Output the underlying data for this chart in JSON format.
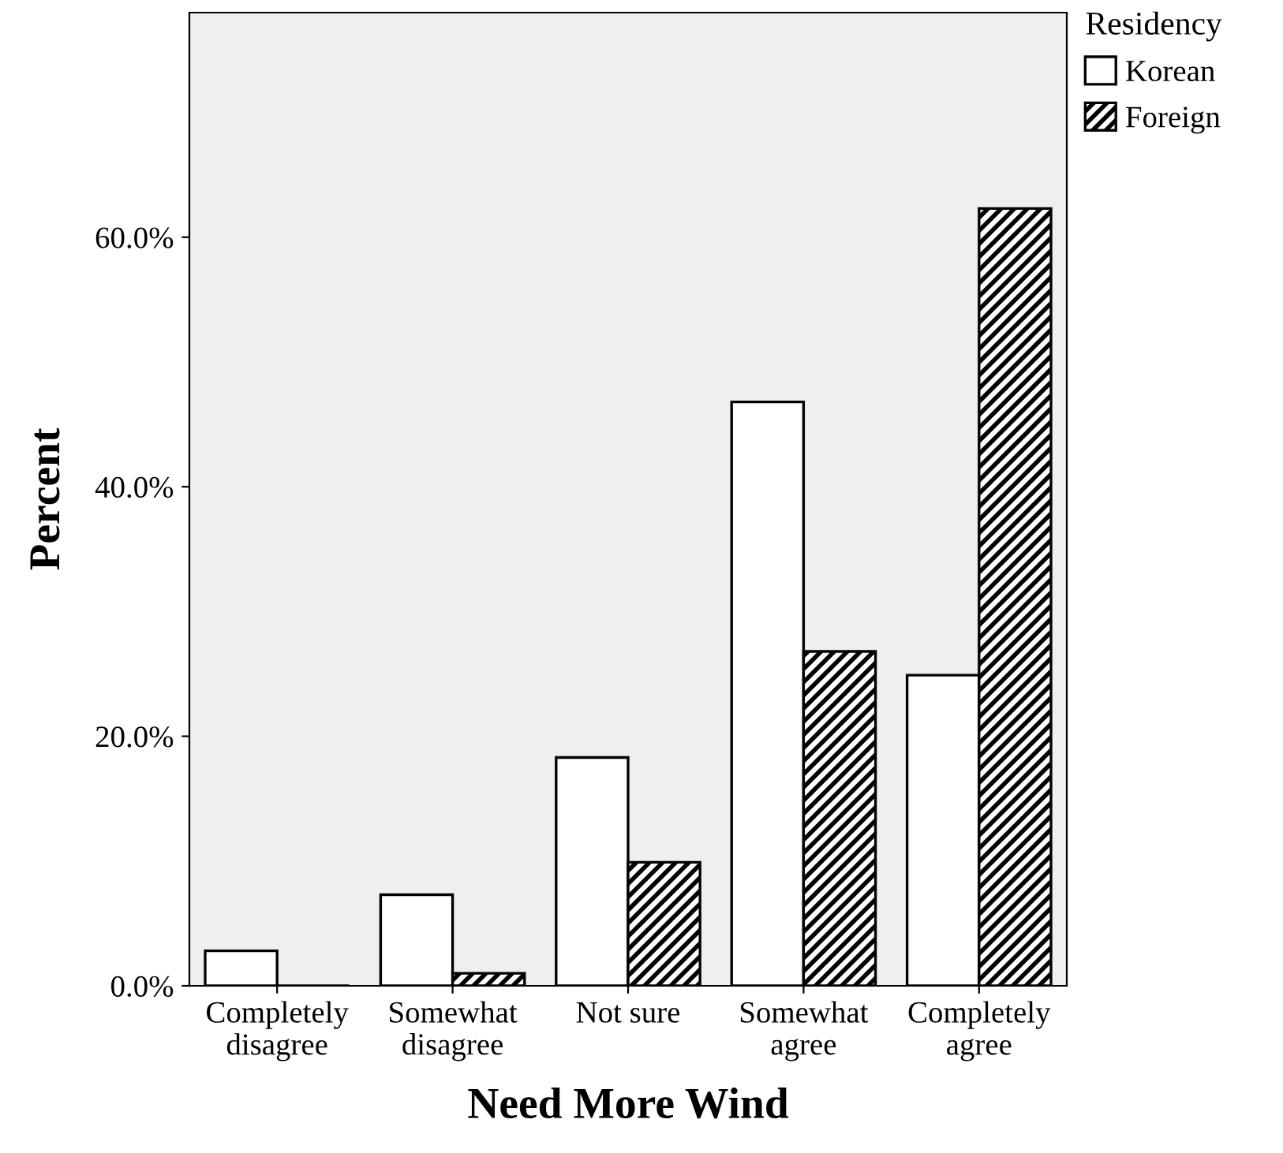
{
  "chart_data": {
    "type": "bar",
    "xlabel": "Need More Wind",
    "ylabel": "Percent",
    "legend_title": "Residency",
    "legend": "top right",
    "categories": [
      "Completely\ndisagree",
      "Somewhat\ndisagree",
      "Not sure",
      "Somewhat\nagree",
      "Completely\nagree"
    ],
    "series": [
      {
        "name": "Korean",
        "color": "#ffffff",
        "values": [
          2.8,
          7.3,
          18.3,
          46.8,
          24.9
        ]
      },
      {
        "name": "Foreign",
        "color": "#000000",
        "values": [
          0,
          1.0,
          9.9,
          26.8,
          62.3
        ]
      }
    ],
    "ylim": [
      0,
      78
    ],
    "yticks": [
      {
        "value": 0,
        "label": "0.0%"
      },
      {
        "value": 20,
        "label": "20.0%"
      },
      {
        "value": 40,
        "label": "40.0%"
      },
      {
        "value": 60,
        "label": "60.0%"
      }
    ],
    "grid": false
  }
}
